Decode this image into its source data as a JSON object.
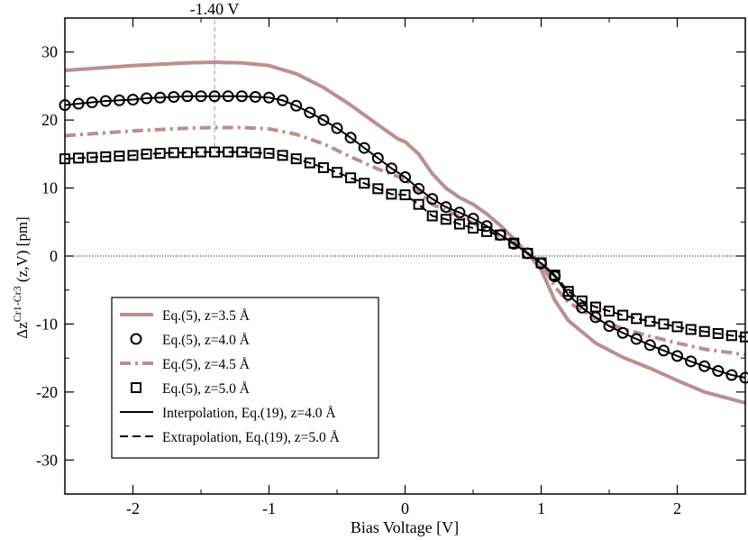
{
  "chart_data": {
    "type": "line",
    "title": "",
    "xlabel": "Bias Voltage [V]",
    "ylabel": {
      "prefix": "Δz",
      "superscript": "Cr1-Cr3",
      "suffix": " (z,V) [pm]"
    },
    "xlim": [
      -2.5,
      2.5
    ],
    "ylim": [
      -35,
      35
    ],
    "xticks": [
      -2,
      -1,
      0,
      1,
      2
    ],
    "xtick_labels": [
      "-2",
      "-1",
      "0",
      "1",
      "2"
    ],
    "yticks": [
      -30,
      -20,
      -10,
      0,
      10,
      20,
      30
    ],
    "ytick_labels": [
      "-30",
      "-20",
      "-10",
      "0",
      "10",
      "20",
      "30"
    ],
    "reference_line": {
      "x": -1.4,
      "label": "-1.40 V"
    },
    "zero_line": 0,
    "colors": {
      "model": "#bc8f8f",
      "data": "#000000"
    },
    "series": [
      {
        "name": "Eq.(5), z=3.5 Å",
        "style": "solid",
        "color": "#bc8f8f",
        "x": [
          -2.5,
          -2.0,
          -1.6,
          -1.4,
          -1.2,
          -1.0,
          -0.8,
          -0.6,
          -0.4,
          -0.2,
          -0.05,
          0.0,
          0.1,
          0.2,
          0.3,
          0.4,
          0.5,
          0.6,
          0.7,
          0.8,
          0.9,
          0.95,
          1.0,
          1.1,
          1.2,
          1.4,
          1.6,
          1.8,
          2.0,
          2.2,
          2.5
        ],
        "values": [
          27.3,
          28.0,
          28.4,
          28.5,
          28.4,
          28.0,
          26.8,
          24.8,
          22.2,
          19.3,
          17.2,
          16.8,
          15.0,
          12.1,
          10.0,
          8.6,
          7.6,
          6.2,
          4.5,
          2.5,
          0.4,
          -0.8,
          -2.0,
          -6.5,
          -9.5,
          -12.8,
          -14.9,
          -16.5,
          -18.3,
          -20.0,
          -21.6
        ]
      },
      {
        "name": "Eq.(5), z=4.0 Å",
        "style": "circle",
        "color": "#000000",
        "x": [
          -2.5,
          -2.4,
          -2.3,
          -2.2,
          -2.1,
          -2.0,
          -1.9,
          -1.8,
          -1.7,
          -1.6,
          -1.5,
          -1.4,
          -1.3,
          -1.2,
          -1.1,
          -1.0,
          -0.9,
          -0.8,
          -0.7,
          -0.6,
          -0.5,
          -0.4,
          -0.3,
          -0.2,
          -0.1,
          0.0,
          0.1,
          0.2,
          0.3,
          0.4,
          0.5,
          0.6,
          0.7,
          0.8,
          0.9,
          1.0,
          1.1,
          1.2,
          1.3,
          1.4,
          1.5,
          1.6,
          1.7,
          1.8,
          1.9,
          2.0,
          2.1,
          2.2,
          2.3,
          2.4,
          2.5
        ],
        "values": [
          22.2,
          22.4,
          22.6,
          22.8,
          22.9,
          23.0,
          23.2,
          23.3,
          23.4,
          23.5,
          23.5,
          23.5,
          23.5,
          23.5,
          23.4,
          23.3,
          22.9,
          22.1,
          21.1,
          20.0,
          18.8,
          17.4,
          15.9,
          14.4,
          12.9,
          11.6,
          9.9,
          8.4,
          7.2,
          6.4,
          5.5,
          4.4,
          3.1,
          1.8,
          0.4,
          -1.1,
          -3.0,
          -5.7,
          -7.6,
          -9.0,
          -10.3,
          -11.3,
          -12.2,
          -13.1,
          -13.9,
          -14.7,
          -15.5,
          -16.2,
          -16.9,
          -17.5,
          -17.9
        ]
      },
      {
        "name": "Eq.(5), z=4.5 Å",
        "style": "dashdot",
        "color": "#bc8f8f",
        "x": [
          -2.5,
          -2.0,
          -1.6,
          -1.4,
          -1.2,
          -1.0,
          -0.8,
          -0.6,
          -0.4,
          -0.2,
          0.0,
          0.2,
          0.4,
          0.6,
          0.8,
          0.9,
          1.0,
          1.1,
          1.2,
          1.4,
          1.6,
          1.8,
          2.0,
          2.2,
          2.5
        ],
        "values": [
          17.7,
          18.4,
          18.8,
          18.9,
          18.9,
          18.7,
          17.9,
          16.5,
          14.6,
          12.8,
          11.3,
          7.6,
          5.8,
          3.9,
          1.8,
          0.5,
          -1.0,
          -4.5,
          -6.8,
          -9.2,
          -10.7,
          -11.8,
          -12.8,
          -13.7,
          -14.5
        ]
      },
      {
        "name": "Eq.(5), z=5.0 Å",
        "style": "square",
        "color": "#000000",
        "x": [
          -2.5,
          -2.4,
          -2.3,
          -2.2,
          -2.1,
          -2.0,
          -1.9,
          -1.8,
          -1.7,
          -1.6,
          -1.5,
          -1.4,
          -1.3,
          -1.2,
          -1.1,
          -1.0,
          -0.9,
          -0.8,
          -0.7,
          -0.6,
          -0.5,
          -0.4,
          -0.3,
          -0.2,
          -0.1,
          0.0,
          0.1,
          0.2,
          0.3,
          0.4,
          0.5,
          0.6,
          0.7,
          0.8,
          0.9,
          1.0,
          1.1,
          1.2,
          1.3,
          1.4,
          1.5,
          1.6,
          1.7,
          1.8,
          1.9,
          2.0,
          2.1,
          2.2,
          2.3,
          2.4,
          2.5
        ],
        "values": [
          14.3,
          14.4,
          14.5,
          14.6,
          14.7,
          14.8,
          15.0,
          15.1,
          15.2,
          15.2,
          15.3,
          15.3,
          15.3,
          15.3,
          15.2,
          15.1,
          14.8,
          14.3,
          13.7,
          13.0,
          12.3,
          11.5,
          10.7,
          9.9,
          9.1,
          9.0,
          7.6,
          5.9,
          5.4,
          4.7,
          4.1,
          3.6,
          3.1,
          1.9,
          0.4,
          -1.0,
          -2.8,
          -5.2,
          -6.6,
          -7.5,
          -8.1,
          -8.7,
          -9.2,
          -9.6,
          -10.0,
          -10.4,
          -10.8,
          -11.1,
          -11.4,
          -11.7,
          -11.9
        ]
      },
      {
        "name": "Interpolation, Eq.(19), z=4.0 Å",
        "style": "solid",
        "color": "#000000",
        "x": [
          -2.5,
          -2.4,
          -2.3,
          -2.2,
          -2.1,
          -2.0,
          -1.9,
          -1.8,
          -1.7,
          -1.6,
          -1.5,
          -1.4,
          -1.3,
          -1.2,
          -1.1,
          -1.0,
          -0.9,
          -0.8,
          -0.7,
          -0.6,
          -0.5,
          -0.4,
          -0.3,
          -0.2,
          -0.1,
          0.0,
          0.1,
          0.2,
          0.3,
          0.4,
          0.5,
          0.6,
          0.7,
          0.8,
          0.9,
          1.0,
          1.1,
          1.2,
          1.3,
          1.4,
          1.5,
          1.6,
          1.7,
          1.8,
          1.9,
          2.0,
          2.1,
          2.2,
          2.3,
          2.4,
          2.5
        ],
        "values": [
          22.2,
          22.4,
          22.6,
          22.8,
          22.9,
          23.0,
          23.2,
          23.3,
          23.4,
          23.5,
          23.5,
          23.5,
          23.5,
          23.5,
          23.4,
          23.3,
          22.9,
          22.1,
          21.1,
          20.0,
          18.8,
          17.4,
          15.9,
          14.4,
          12.9,
          11.6,
          9.9,
          8.4,
          7.2,
          6.4,
          5.5,
          4.4,
          3.1,
          1.8,
          0.4,
          -1.1,
          -3.0,
          -5.7,
          -7.6,
          -9.0,
          -10.3,
          -11.3,
          -12.2,
          -13.1,
          -13.9,
          -14.7,
          -15.5,
          -16.2,
          -16.9,
          -17.5,
          -17.9
        ]
      },
      {
        "name": "Extrapolation, Eq.(19), z=5.0 Å",
        "style": "dashed",
        "color": "#000000",
        "x": [
          -2.5,
          -2.4,
          -2.3,
          -2.2,
          -2.1,
          -2.0,
          -1.9,
          -1.8,
          -1.7,
          -1.6,
          -1.5,
          -1.4,
          -1.3,
          -1.2,
          -1.1,
          -1.0,
          -0.9,
          -0.8,
          -0.7,
          -0.6,
          -0.5,
          -0.4,
          -0.3,
          -0.2,
          -0.1,
          0.0,
          0.1,
          0.2,
          0.3,
          0.4,
          0.5,
          0.6,
          0.7,
          0.8,
          0.9,
          1.0,
          1.1,
          1.2,
          1.3,
          1.4,
          1.5,
          1.6,
          1.7,
          1.8,
          1.9,
          2.0,
          2.1,
          2.2,
          2.3,
          2.4,
          2.5
        ],
        "values": [
          14.3,
          14.4,
          14.5,
          14.6,
          14.7,
          14.8,
          15.0,
          15.1,
          15.2,
          15.2,
          15.3,
          15.3,
          15.3,
          15.3,
          15.2,
          15.1,
          14.8,
          14.3,
          13.7,
          13.0,
          12.3,
          11.5,
          10.7,
          9.9,
          9.1,
          9.0,
          7.6,
          5.9,
          5.4,
          4.7,
          4.1,
          3.6,
          3.1,
          1.9,
          0.4,
          -1.0,
          -2.8,
          -5.2,
          -6.6,
          -7.5,
          -8.1,
          -8.7,
          -9.2,
          -9.6,
          -10.0,
          -10.4,
          -10.8,
          -11.1,
          -11.4,
          -11.7,
          -11.9
        ]
      }
    ]
  }
}
